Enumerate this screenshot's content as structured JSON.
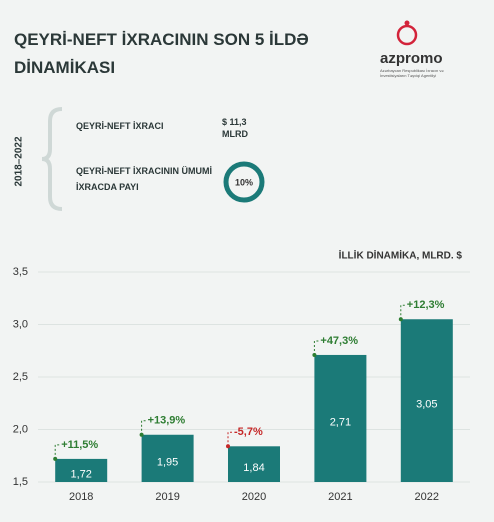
{
  "header": {
    "title": "QEYRİ-NEFT İXRACININ SON 5 İLDƏ DİNAMİKASI"
  },
  "logo": {
    "name": "azpromo",
    "subtitle": "Azərbaycan Respublikası İxracın və İnvestisiyaların Təşviqi Agentliyi"
  },
  "summary": {
    "period": "2018–2022",
    "items": [
      {
        "label": "QEYRİ-NEFT İXRACI",
        "value": "$ 11,3 MLRD"
      },
      {
        "label": "QEYRİ-NEFT İXRACININ ÜMUMİ İXRACDA PAYI",
        "value": "10%"
      }
    ]
  },
  "chart_data": {
    "type": "bar",
    "title": "İLLİK DİNAMİKA, MLRD. $",
    "categories": [
      "2018",
      "2019",
      "2020",
      "2021",
      "2022"
    ],
    "values": [
      1.72,
      1.95,
      1.84,
      2.71,
      3.05
    ],
    "value_labels": [
      "1,72",
      "1,95",
      "1,84",
      "2,71",
      "3,05"
    ],
    "changes": [
      {
        "label": "+11,5%",
        "color": "#2e7d32"
      },
      {
        "label": "+13,9%",
        "color": "#2e7d32"
      },
      {
        "label": "-5,7%",
        "color": "#c62828"
      },
      {
        "label": "+47,3%",
        "color": "#2e7d32"
      },
      {
        "label": "+12,3%",
        "color": "#2e7d32"
      }
    ],
    "color": "#1b7a78",
    "ylim": [
      1.5,
      3.5
    ],
    "yticks": [
      {
        "value": 1.5,
        "label": "1,5"
      },
      {
        "value": 2.0,
        "label": "2,0"
      },
      {
        "value": 2.5,
        "label": "2,5"
      },
      {
        "value": 3.0,
        "label": "3,0"
      },
      {
        "value": 3.5,
        "label": "3,5"
      }
    ],
    "grid": true
  }
}
